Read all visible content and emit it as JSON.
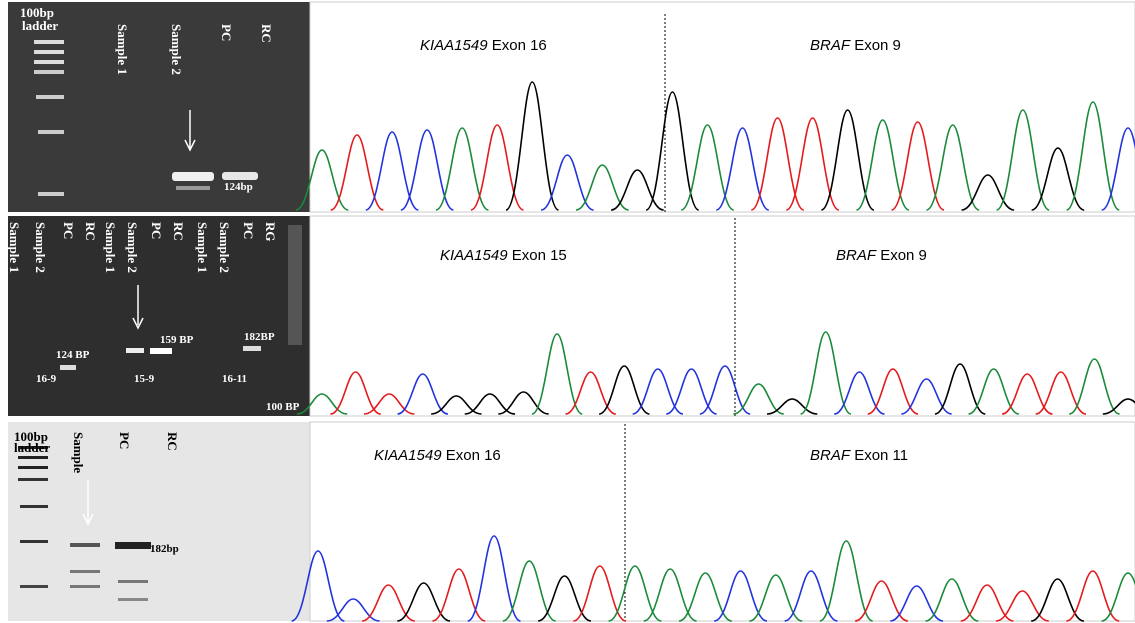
{
  "rows": [
    {
      "gel": {
        "lanes": [
          "100bp",
          "ladder",
          "Sample 1",
          "Sample 2",
          "PC",
          "RC"
        ],
        "bands": [
          "124bp"
        ]
      },
      "chrom": {
        "left": {
          "gene": "KIAA1549",
          "exon": "Exon 16"
        },
        "right": {
          "gene": "BRAF",
          "exon": "Exon 9"
        }
      }
    },
    {
      "gel": {
        "lanes": [
          "Sample 1",
          "Sample 2",
          "PC",
          "RC",
          "Sample 1",
          "Sample 2",
          "PC",
          "RC",
          "Sample 1",
          "Sample 2",
          "PC",
          "RG"
        ],
        "bands": [
          "124 BP",
          "159 BP",
          "182BP",
          "16-9",
          "15-9",
          "16-11",
          "100 BP"
        ]
      },
      "chrom": {
        "left": {
          "gene": "KIAA1549",
          "exon": "Exon 15"
        },
        "right": {
          "gene": "BRAF",
          "exon": "Exon 9"
        }
      }
    },
    {
      "gel": {
        "lanes": [
          "100bp",
          "ladder",
          "Sample",
          "PC",
          "RC"
        ],
        "bands": [
          "182bp"
        ]
      },
      "chrom": {
        "left": {
          "gene": "KIAA1549",
          "exon": "Exon 16"
        },
        "right": {
          "gene": "BRAF",
          "exon": "Exon 11"
        }
      }
    }
  ]
}
